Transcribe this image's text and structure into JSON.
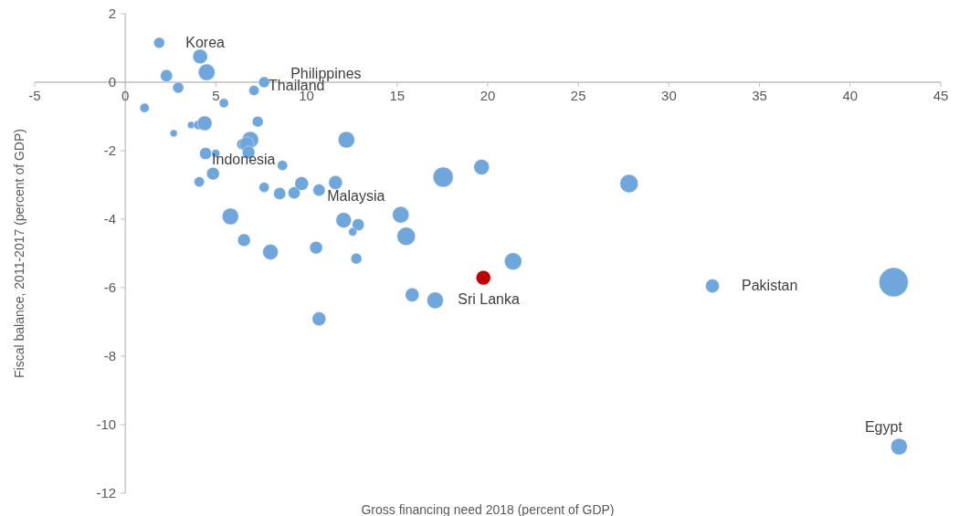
{
  "chart_data": {
    "type": "bubble",
    "xlabel": "Gross financing need 2018 (percent of GDP)",
    "ylabel": "Fiscal balance, 2011-2017 (percent of GDP)",
    "xlim": [
      -5,
      45
    ],
    "xticks": [
      -5,
      0,
      5,
      10,
      15,
      20,
      25,
      30,
      35,
      40,
      45
    ],
    "ylim": [
      -12,
      2
    ],
    "yticks": [
      -12,
      -10,
      -8,
      -6,
      -4,
      -2,
      0,
      2
    ],
    "grid": false,
    "x": [
      1.87,
      4.13,
      4.49,
      2.27,
      2.92,
      1.06,
      5.44,
      7.66,
      7.1,
      2.67,
      3.63,
      4.03,
      4.38,
      7.31,
      12.2,
      6.45,
      6.9,
      6.7,
      6.8,
      4.43,
      4.99,
      8.67,
      4.84,
      4.08,
      7.66,
      8.52,
      9.32,
      9.73,
      10.69,
      11.6,
      5.8,
      6.55,
      8.01,
      10.53,
      12.05,
      12.85,
      12.55,
      12.75,
      10.69,
      15.2,
      15.5,
      15.83,
      17.1,
      17.54,
      19.66,
      19.76,
      21.4,
      27.8,
      32.4,
      42.4,
      42.7
    ],
    "values": [
      1.15,
      0.75,
      0.29,
      0.19,
      -0.16,
      -0.75,
      -0.61,
      0,
      -0.24,
      -1.49,
      -1.25,
      -1.25,
      -1.2,
      -1.15,
      -1.68,
      -1.81,
      -1.68,
      -1.81,
      -2.05,
      -2.08,
      -2.08,
      -2.43,
      -2.67,
      -2.91,
      -3.07,
      -3.25,
      -3.23,
      -2.96,
      -3.15,
      -2.93,
      -3.92,
      -4.61,
      -4.96,
      -4.83,
      -4.03,
      -4.16,
      -4.37,
      -5.15,
      -6.91,
      -3.87,
      -4.5,
      -6.21,
      -6.37,
      -2.77,
      -2.48,
      -5.71,
      -5.23,
      -2.96,
      -5.95,
      -5.84,
      -10.64
    ],
    "sizes": [
      0.14,
      0.25,
      0.32,
      0.17,
      0.14,
      0.1,
      0.1,
      0.14,
      0.12,
      0.06,
      0.06,
      0.1,
      0.25,
      0.14,
      0.32,
      0.14,
      0.32,
      0.25,
      0.19,
      0.17,
      0.08,
      0.12,
      0.19,
      0.12,
      0.12,
      0.17,
      0.17,
      0.22,
      0.17,
      0.22,
      0.32,
      0.19,
      0.28,
      0.19,
      0.28,
      0.17,
      0.08,
      0.14,
      0.22,
      0.32,
      0.39,
      0.22,
      0.32,
      0.47,
      0.28,
      0.25,
      0.35,
      0.39,
      0.22,
      1,
      0.32
    ],
    "colors": [
      "#6fa6dc",
      "#6fa6dc",
      "#6fa6dc",
      "#6fa6dc",
      "#6fa6dc",
      "#6fa6dc",
      "#6fa6dc",
      "#6fa6dc",
      "#6fa6dc",
      "#6fa6dc",
      "#6fa6dc",
      "#6fa6dc",
      "#6fa6dc",
      "#6fa6dc",
      "#6fa6dc",
      "#6fa6dc",
      "#6fa6dc",
      "#6fa6dc",
      "#6fa6dc",
      "#6fa6dc",
      "#6fa6dc",
      "#6fa6dc",
      "#6fa6dc",
      "#6fa6dc",
      "#6fa6dc",
      "#6fa6dc",
      "#6fa6dc",
      "#6fa6dc",
      "#6fa6dc",
      "#6fa6dc",
      "#6fa6dc",
      "#6fa6dc",
      "#6fa6dc",
      "#6fa6dc",
      "#6fa6dc",
      "#6fa6dc",
      "#6fa6dc",
      "#6fa6dc",
      "#6fa6dc",
      "#6fa6dc",
      "#6fa6dc",
      "#6fa6dc",
      "#6fa6dc",
      "#6fa6dc",
      "#6fa6dc",
      "#c00000",
      "#6fa6dc",
      "#6fa6dc",
      "#6fa6dc",
      "#6fa6dc",
      "#6fa6dc"
    ],
    "annotations": [
      {
        "text": "Korea",
        "x": 1.87,
        "y": 1.15
      },
      {
        "text": "Philippines",
        "x": 7.66,
        "y": 0
      },
      {
        "text": "Thailand",
        "x": 7.1,
        "y": -0.24
      },
      {
        "text": "Indonesia",
        "x": 6.8,
        "y": -2.05
      },
      {
        "text": "Malaysia",
        "x": 10.69,
        "y": -3.15
      },
      {
        "text": "Sri Lanka",
        "x": 19.76,
        "y": -5.71
      },
      {
        "text": "Pakistan",
        "x": 32.4,
        "y": -5.95
      },
      {
        "text": "Egypt",
        "x": 42.7,
        "y": -10.64
      }
    ]
  }
}
